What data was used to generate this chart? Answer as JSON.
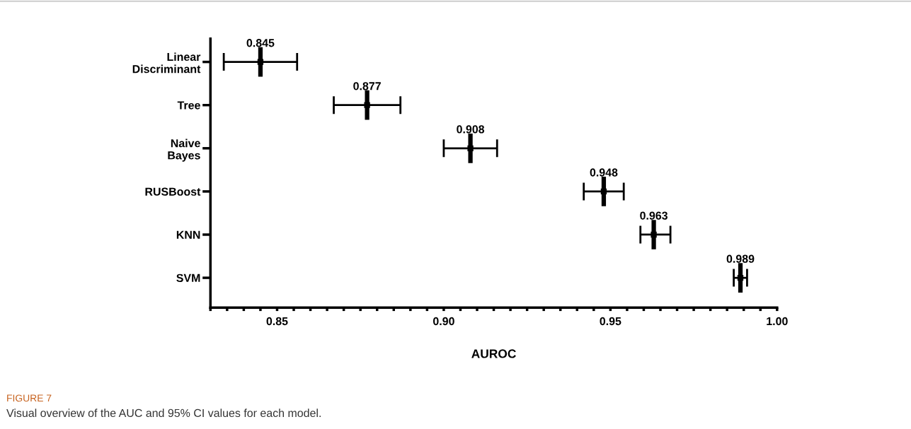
{
  "chart_data": {
    "type": "scatter",
    "orientation": "horizontal",
    "categories": [
      "Linear\nDiscriminant",
      "Tree",
      "Naive\nBayes",
      "RUSBoost",
      "KNN",
      "SVM"
    ],
    "values": [
      0.845,
      0.877,
      0.908,
      0.948,
      0.963,
      0.989
    ],
    "errors": [
      [
        0.834,
        0.856
      ],
      [
        0.867,
        0.887
      ],
      [
        0.9,
        0.916
      ],
      [
        0.942,
        0.954
      ],
      [
        0.959,
        0.968
      ],
      [
        0.987,
        0.991
      ]
    ],
    "color": "#000000",
    "data_labels": true,
    "xlabel": "AUROC",
    "xlim": [
      0.83,
      1.0
    ],
    "xticks": [
      {
        "value": 0.83,
        "label": null
      },
      {
        "value": 0.835,
        "label": null
      },
      {
        "value": 0.84,
        "label": null
      },
      {
        "value": 0.845,
        "label": null
      },
      {
        "value": 0.85,
        "label": "0.85"
      },
      {
        "value": 0.855,
        "label": null
      },
      {
        "value": 0.86,
        "label": null
      },
      {
        "value": 0.865,
        "label": null
      },
      {
        "value": 0.87,
        "label": null
      },
      {
        "value": 0.875,
        "label": null
      },
      {
        "value": 0.88,
        "label": null
      },
      {
        "value": 0.885,
        "label": null
      },
      {
        "value": 0.89,
        "label": null
      },
      {
        "value": 0.895,
        "label": null
      },
      {
        "value": 0.9,
        "label": "0.90"
      },
      {
        "value": 0.905,
        "label": null
      },
      {
        "value": 0.91,
        "label": null
      },
      {
        "value": 0.915,
        "label": null
      },
      {
        "value": 0.92,
        "label": null
      },
      {
        "value": 0.925,
        "label": null
      },
      {
        "value": 0.93,
        "label": null
      },
      {
        "value": 0.935,
        "label": null
      },
      {
        "value": 0.94,
        "label": null
      },
      {
        "value": 0.945,
        "label": null
      },
      {
        "value": 0.95,
        "label": "0.95"
      },
      {
        "value": 0.955,
        "label": null
      },
      {
        "value": 0.96,
        "label": null
      },
      {
        "value": 0.965,
        "label": null
      },
      {
        "value": 0.97,
        "label": null
      },
      {
        "value": 0.975,
        "label": null
      },
      {
        "value": 0.98,
        "label": null
      },
      {
        "value": 0.985,
        "label": null
      },
      {
        "value": 0.99,
        "label": null
      },
      {
        "value": 0.995,
        "label": null
      },
      {
        "value": 1.0,
        "label": "1.00"
      }
    ],
    "grid": false,
    "legend": false,
    "annotations": [
      "FIGURE 7",
      "Visual overview of the AUC and 95% CI values for each model."
    ]
  }
}
